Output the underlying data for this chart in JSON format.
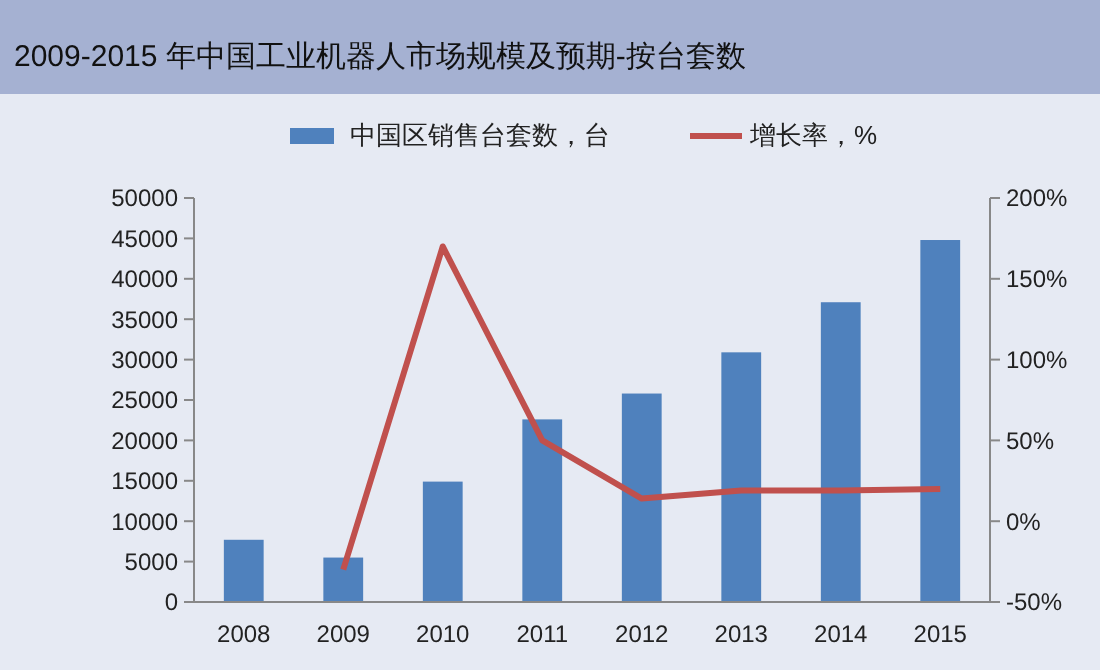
{
  "chart_data": {
    "type": "bar",
    "title": "2009-2015 年中国工业机器人市场规模及预期-按台套数",
    "categories": [
      "2008",
      "2009",
      "2010",
      "2011",
      "2012",
      "2013",
      "2014",
      "2015"
    ],
    "series": [
      {
        "name": "中国区销售台套数，台",
        "color": "#4f81bd",
        "values": [
          7700,
          5500,
          14900,
          22600,
          25800,
          30900,
          37100,
          44800
        ]
      },
      {
        "name": "增长率，%",
        "type": "line",
        "axis": "y2",
        "color": "#c0504d",
        "values": [
          null,
          -30,
          170,
          50,
          14,
          19,
          19,
          20
        ]
      }
    ],
    "ylim": [
      0,
      50000
    ],
    "yticks": [
      0,
      5000,
      10000,
      15000,
      20000,
      25000,
      30000,
      35000,
      40000,
      45000,
      50000
    ],
    "y2lim": [
      -50,
      200
    ],
    "y2ticks": [
      {
        "value": -50,
        "label": "-50%"
      },
      {
        "value": 0,
        "label": "0%"
      },
      {
        "value": 50,
        "label": "50%"
      },
      {
        "value": 100,
        "label": "100%"
      },
      {
        "value": 150,
        "label": "150%"
      },
      {
        "value": 200,
        "label": "200%"
      }
    ],
    "legend": "top",
    "grid": false
  }
}
